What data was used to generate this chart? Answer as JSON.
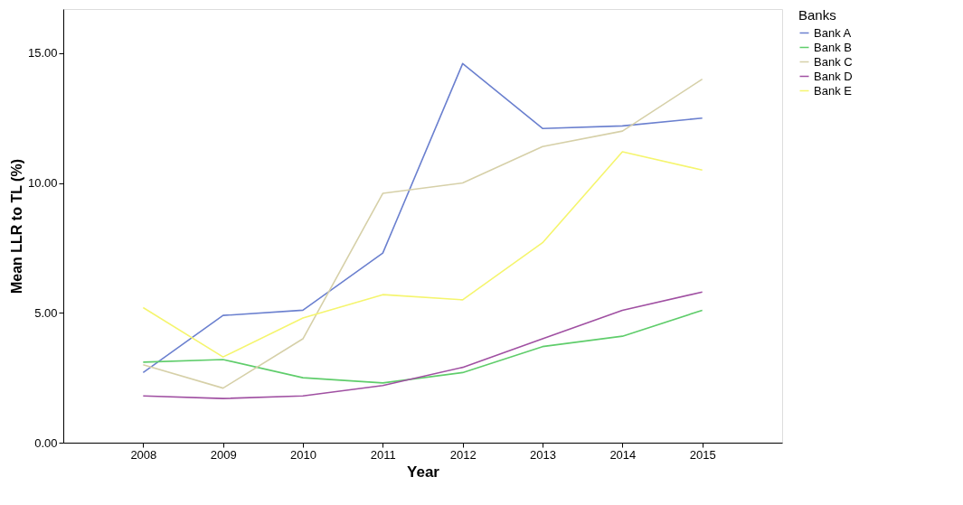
{
  "chart_data": {
    "type": "line",
    "xlabel": "Year",
    "ylabel": "Mean LLR to TL (%)",
    "legend_title": "Banks",
    "legend": "top right",
    "grid": false,
    "marker": "none",
    "line_style": "solid",
    "categories": [
      "2008",
      "2009",
      "2010",
      "2011",
      "2012",
      "2013",
      "2014",
      "2015"
    ],
    "ylim": [
      0,
      16.7
    ],
    "yticks": [
      {
        "value": 0,
        "label": "0.00"
      },
      {
        "value": 5,
        "label": "5.00"
      },
      {
        "value": 10,
        "label": "10.00"
      },
      {
        "value": 15,
        "label": "15.00"
      }
    ],
    "series": [
      {
        "name": "Bank A",
        "color": "#6b80cf",
        "values": [
          2.7,
          4.9,
          5.1,
          7.3,
          14.6,
          12.1,
          12.2,
          12.5
        ]
      },
      {
        "name": "Bank B",
        "color": "#5fcd6b",
        "values": [
          3.1,
          3.2,
          2.5,
          2.3,
          2.7,
          3.7,
          4.1,
          5.1
        ]
      },
      {
        "name": "Bank C",
        "color": "#d6d0a8",
        "values": [
          3.0,
          2.1,
          4.0,
          9.6,
          10.0,
          11.4,
          12.0,
          14.0
        ]
      },
      {
        "name": "Bank D",
        "color": "#a050a2",
        "values": [
          1.8,
          1.7,
          1.8,
          2.2,
          2.9,
          4.0,
          5.1,
          5.8
        ]
      },
      {
        "name": "Bank E",
        "color": "#f5f56e",
        "values": [
          5.2,
          3.3,
          4.8,
          5.7,
          5.5,
          7.7,
          11.2,
          10.5
        ]
      }
    ]
  }
}
